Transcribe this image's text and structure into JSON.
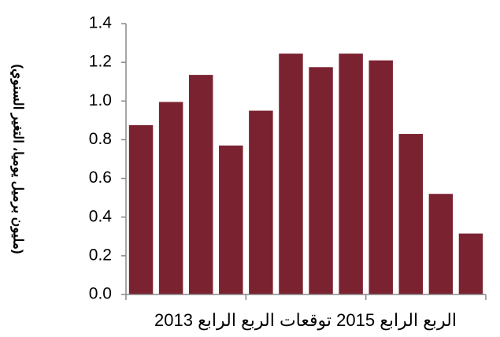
{
  "chart_data": {
    "type": "bar",
    "y_label": "(مليون برميل يوميا، التغير السنوي)",
    "x_label": "الربع الرابع 2015 توقعات الربع الرابع 2013",
    "categories": [
      null,
      null,
      null,
      null,
      null,
      null,
      null,
      null,
      null,
      null,
      null,
      null
    ],
    "values": [
      0.875,
      0.995,
      1.135,
      0.77,
      0.95,
      1.245,
      1.175,
      1.245,
      1.21,
      0.83,
      0.52,
      0.315
    ],
    "color": "#7b2230",
    "ylim": [
      0,
      1.4
    ],
    "yticks": [
      {
        "value": 0,
        "label": "0.0"
      },
      0.2,
      0.4,
      0.6,
      0.8,
      {
        "value": 1,
        "label": "1.0"
      },
      1.2,
      1.4
    ],
    "grid": false
  }
}
